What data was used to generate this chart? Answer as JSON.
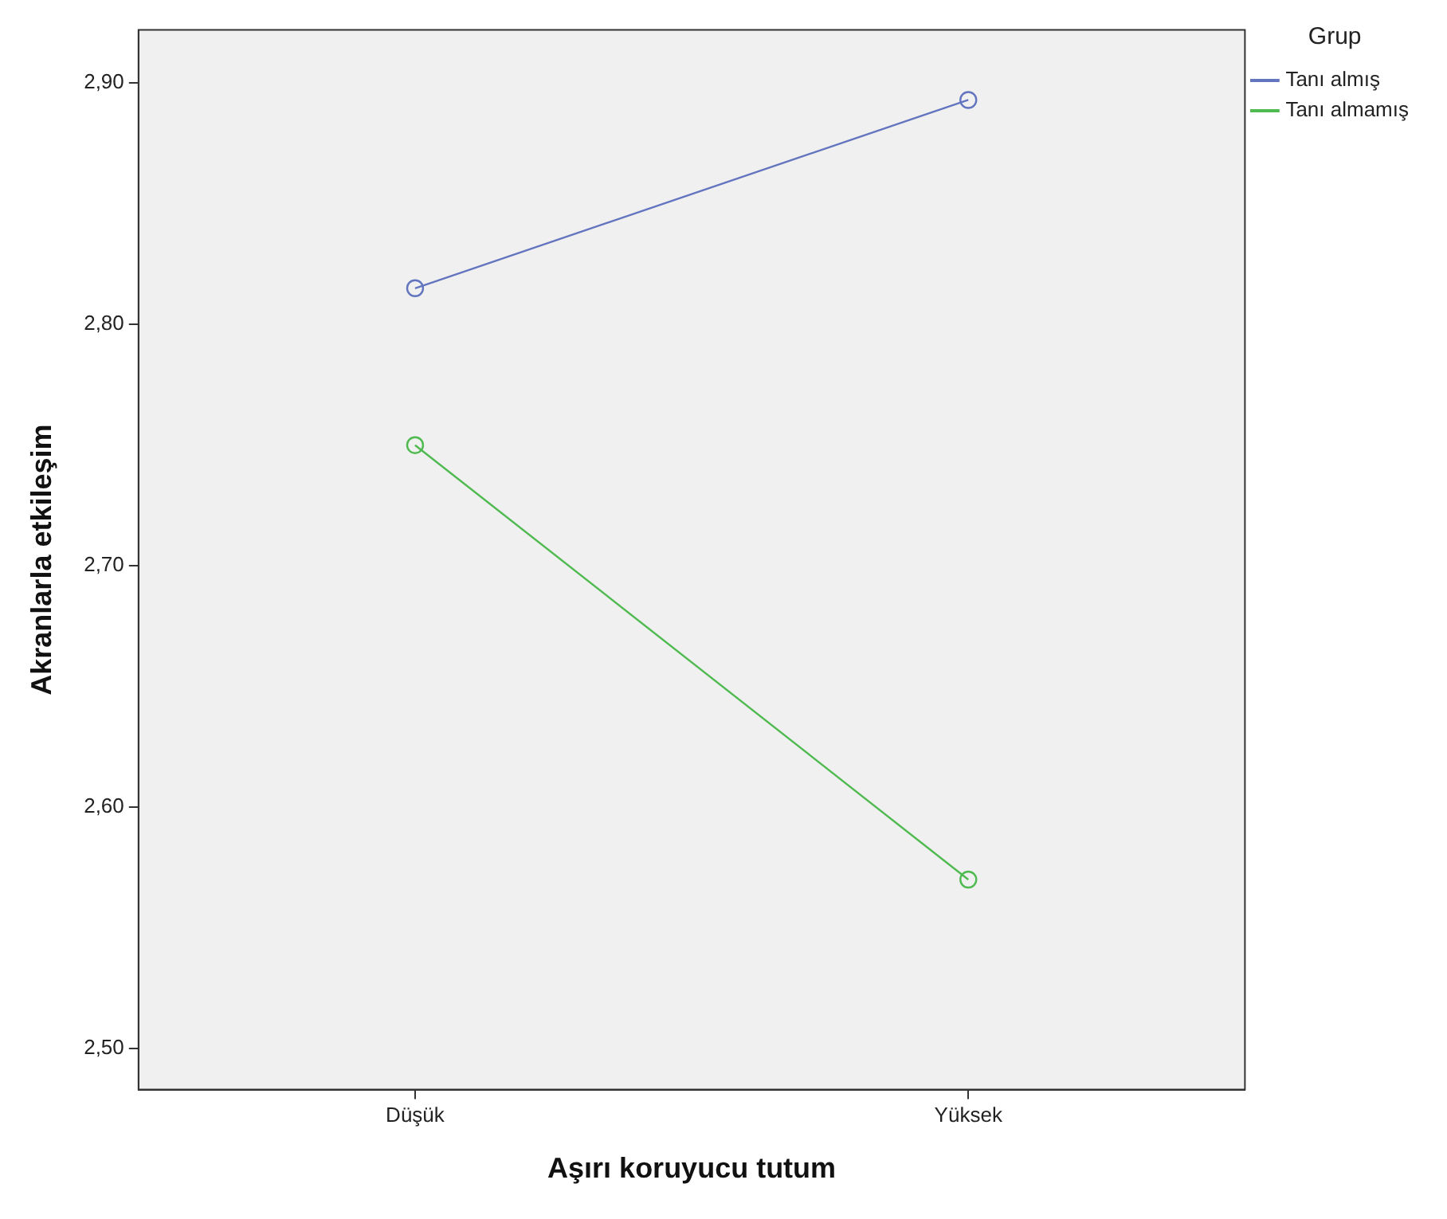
{
  "chart_data": {
    "type": "line",
    "xlabel": "Aşırı koruyucu tutum",
    "ylabel": "Akranlarla etkileşim",
    "legend_title": "Grup",
    "categories": [
      "Düşük",
      "Yüksek"
    ],
    "series": [
      {
        "name": "Tanı almış",
        "color": "#6475c0",
        "values": [
          2.815,
          2.893
        ]
      },
      {
        "name": "Tanı almamış",
        "color": "#4fba4f",
        "values": [
          2.75,
          2.57
        ]
      }
    ],
    "ylim": [
      2.483,
      2.922
    ],
    "yticks": [
      {
        "value": 2.5,
        "label": "2,50"
      },
      {
        "value": 2.6,
        "label": "2,60"
      },
      {
        "value": 2.7,
        "label": "2,70"
      },
      {
        "value": 2.8,
        "label": "2,80"
      },
      {
        "value": 2.9,
        "label": "2,90"
      }
    ],
    "grid": false,
    "legend": "top right",
    "marker": "circle",
    "line_style": "solid"
  }
}
